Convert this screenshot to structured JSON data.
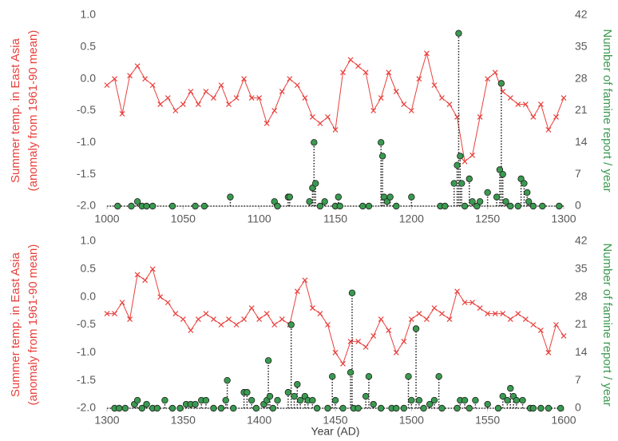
{
  "chart_data": [
    {
      "type": "line",
      "ylabel": [
        "Summer temp. in East Asia",
        "(anomaly from 1961-90 mean)"
      ],
      "y2label": "Number of famine report / year",
      "xlim": [
        1000,
        1300
      ],
      "xticks": [
        1000,
        1050,
        1100,
        1150,
        1200,
        1250,
        1300
      ],
      "ylim": [
        -2,
        1
      ],
      "yticks": [
        {
          "value": 1,
          "label": "1.0"
        },
        {
          "value": 0.5,
          "label": "0.5"
        },
        {
          "value": 0,
          "label": "0.0"
        },
        {
          "value": -0.5,
          "label": "-0.5"
        },
        {
          "value": -1,
          "label": "-1.0"
        },
        {
          "value": -1.5,
          "label": "-1.5"
        },
        {
          "value": -2,
          "label": "-2.0"
        }
      ],
      "y2lim": [
        0,
        42
      ],
      "y2ticks": [
        0,
        7,
        14,
        21,
        28,
        35,
        42
      ],
      "series": [
        {
          "color": "#e8403c",
          "marker": "x",
          "x": [
            1000,
            1005,
            1010,
            1015,
            1020,
            1025,
            1030,
            1035,
            1040,
            1045,
            1050,
            1055,
            1060,
            1065,
            1070,
            1075,
            1080,
            1085,
            1090,
            1095,
            1100,
            1105,
            1110,
            1115,
            1120,
            1125,
            1130,
            1135,
            1140,
            1145,
            1150,
            1155,
            1160,
            1165,
            1170,
            1175,
            1180,
            1185,
            1190,
            1195,
            1200,
            1205,
            1210,
            1215,
            1220,
            1225,
            1230,
            1235,
            1240,
            1245,
            1250,
            1255,
            1260,
            1265,
            1270,
            1275,
            1280,
            1285,
            1290,
            1295,
            1300
          ],
          "values": [
            -0.1,
            0.0,
            -0.55,
            0.05,
            0.2,
            0.0,
            -0.1,
            -0.4,
            -0.3,
            -0.5,
            -0.4,
            -0.2,
            -0.4,
            -0.2,
            -0.3,
            -0.1,
            -0.4,
            -0.3,
            0.0,
            -0.3,
            -0.3,
            -0.7,
            -0.5,
            -0.2,
            0.0,
            -0.1,
            -0.3,
            -0.6,
            -0.7,
            -0.6,
            -0.8,
            0.1,
            0.3,
            0.2,
            0.1,
            -0.5,
            -0.3,
            0.1,
            -0.2,
            -0.4,
            -0.5,
            0.0,
            0.4,
            -0.1,
            -0.3,
            -0.4,
            -0.6,
            -1.3,
            -1.2,
            -0.6,
            0.0,
            0.1,
            -0.2,
            -0.3,
            -0.4,
            -0.4,
            -0.6,
            -0.4,
            -0.8,
            -0.6,
            -0.3
          ]
        },
        {
          "color": "#3a9a50",
          "marker": "circle",
          "axis": "y2",
          "x": [
            1007,
            1016,
            1020,
            1023,
            1026,
            1030,
            1043,
            1058,
            1064,
            1081,
            1110,
            1112,
            1119,
            1120,
            1133,
            1135,
            1136,
            1137,
            1140,
            1143,
            1150,
            1152,
            1153,
            1168,
            1172,
            1180,
            1181,
            1182,
            1184,
            1186,
            1190,
            1200,
            1219,
            1222,
            1228,
            1230,
            1231,
            1232,
            1233,
            1235,
            1238,
            1240,
            1243,
            1245,
            1250,
            1256,
            1258,
            1259,
            1260,
            1262,
            1265,
            1270,
            1272,
            1274,
            1276,
            1277,
            1280,
            1286,
            1297
          ],
          "values": [
            0,
            0,
            1,
            0,
            0,
            0,
            0,
            0,
            0,
            2,
            1,
            0,
            2,
            2,
            1,
            4,
            14,
            5,
            0,
            1,
            0,
            2,
            0,
            0,
            0,
            14,
            11,
            2,
            1,
            2,
            0,
            2,
            0,
            0,
            5,
            9,
            38,
            11,
            5,
            0,
            6,
            1,
            0,
            1,
            3,
            2,
            8,
            27,
            7,
            1,
            0,
            0,
            6,
            5,
            3,
            1,
            0,
            0,
            0
          ]
        }
      ]
    },
    {
      "type": "line",
      "ylabel": [
        "Summer temp. in East Asia",
        "(anomaly from 1961-90 mean)"
      ],
      "y2label": "Number of famine report / year",
      "xlabel": "Year (AD)",
      "xlim": [
        1300,
        1600
      ],
      "xticks": [
        1300,
        1350,
        1400,
        1450,
        1500,
        1550,
        1600
      ],
      "ylim": [
        -2,
        1
      ],
      "yticks": [
        {
          "value": 1,
          "label": "1.0"
        },
        {
          "value": 0.5,
          "label": "0.5"
        },
        {
          "value": 0,
          "label": "0.0"
        },
        {
          "value": -0.5,
          "label": "-0.5"
        },
        {
          "value": -1,
          "label": "-1.0"
        },
        {
          "value": -1.5,
          "label": "-1.5"
        },
        {
          "value": -2,
          "label": "-2.0"
        }
      ],
      "y2lim": [
        0,
        42
      ],
      "y2ticks": [
        0,
        7,
        14,
        21,
        28,
        35,
        42
      ],
      "series": [
        {
          "color": "#e8403c",
          "marker": "x",
          "x": [
            1300,
            1305,
            1310,
            1315,
            1320,
            1325,
            1330,
            1335,
            1340,
            1345,
            1350,
            1355,
            1360,
            1365,
            1370,
            1375,
            1380,
            1385,
            1390,
            1395,
            1400,
            1405,
            1410,
            1415,
            1420,
            1425,
            1430,
            1435,
            1440,
            1445,
            1450,
            1455,
            1460,
            1465,
            1470,
            1475,
            1480,
            1485,
            1490,
            1495,
            1500,
            1505,
            1510,
            1515,
            1520,
            1525,
            1530,
            1535,
            1540,
            1545,
            1550,
            1555,
            1560,
            1565,
            1570,
            1575,
            1580,
            1585,
            1590,
            1595,
            1600
          ],
          "values": [
            -0.3,
            -0.3,
            -0.1,
            -0.4,
            0.4,
            0.3,
            0.5,
            0.0,
            -0.1,
            -0.3,
            -0.4,
            -0.6,
            -0.4,
            -0.3,
            -0.4,
            -0.5,
            -0.4,
            -0.5,
            -0.4,
            -0.2,
            -0.4,
            -0.3,
            -0.5,
            -0.4,
            -0.5,
            0.1,
            0.3,
            -0.2,
            -0.3,
            -0.5,
            -1.0,
            -1.2,
            -0.8,
            -0.8,
            -0.9,
            -0.7,
            -0.4,
            -0.6,
            -1.0,
            -0.8,
            -0.4,
            -0.3,
            -0.4,
            -0.2,
            -0.3,
            -0.4,
            0.1,
            -0.1,
            -0.1,
            -0.2,
            -0.3,
            -0.3,
            -0.3,
            -0.4,
            -0.3,
            -0.4,
            -0.5,
            -0.6,
            -1.0,
            -0.5,
            -0.7
          ]
        },
        {
          "color": "#3a9a50",
          "marker": "circle",
          "axis": "y2",
          "x": [
            1305,
            1308,
            1312,
            1318,
            1320,
            1323,
            1326,
            1330,
            1333,
            1338,
            1343,
            1348,
            1352,
            1355,
            1358,
            1362,
            1365,
            1370,
            1375,
            1378,
            1379,
            1383,
            1390,
            1392,
            1395,
            1398,
            1403,
            1405,
            1406,
            1407,
            1409,
            1412,
            1419,
            1421,
            1423,
            1425,
            1427,
            1430,
            1432,
            1435,
            1438,
            1445,
            1448,
            1450,
            1455,
            1460,
            1461,
            1462,
            1465,
            1470,
            1472,
            1475,
            1480,
            1487,
            1490,
            1495,
            1498,
            1500,
            1503,
            1505,
            1508,
            1512,
            1515,
            1518,
            1520,
            1530,
            1532,
            1535,
            1538,
            1542,
            1550,
            1557,
            1560,
            1563,
            1565,
            1567,
            1569,
            1573,
            1578,
            1580,
            1585,
            1590,
            1598
          ],
          "values": [
            0,
            0,
            0,
            1,
            2,
            0,
            1,
            0,
            0,
            2,
            0,
            0,
            1,
            1,
            1,
            2,
            2,
            0,
            0,
            2,
            7,
            0,
            4,
            4,
            2,
            0,
            1,
            2,
            12,
            3,
            0,
            2,
            4,
            21,
            3,
            6,
            2,
            3,
            2,
            2,
            0,
            0,
            8,
            2,
            0,
            9,
            29,
            0,
            0,
            3,
            8,
            1,
            0,
            0,
            0,
            0,
            8,
            2,
            20,
            2,
            0,
            1,
            2,
            8,
            0,
            0,
            2,
            2,
            0,
            2,
            1,
            0,
            3,
            2,
            5,
            3,
            2,
            2,
            0,
            0,
            0,
            0,
            0
          ]
        }
      ]
    }
  ]
}
